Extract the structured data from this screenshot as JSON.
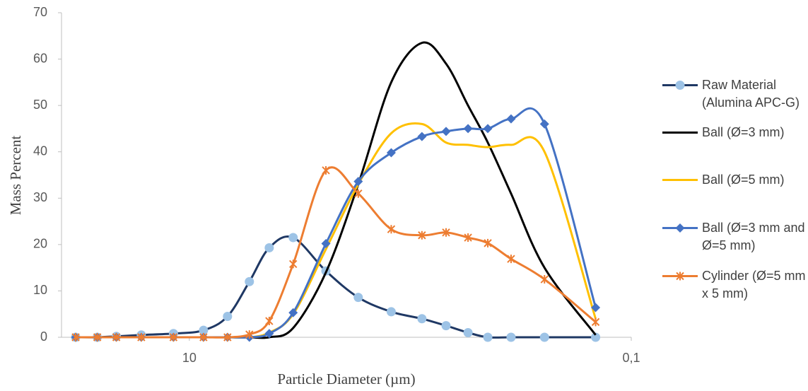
{
  "chart_data": {
    "type": "line",
    "xlabel": "Particle Diameter (µm)",
    "ylabel": "Mass Percent",
    "x": [
      32.7,
      26.1,
      21.4,
      16.5,
      11.8,
      8.63,
      6.72,
      5.35,
      4.35,
      3.39,
      2.41,
      1.72,
      1.22,
      0.886,
      0.689,
      0.548,
      0.446,
      0.35,
      0.247,
      0.145
    ],
    "xlog": true,
    "xlim": [
      37.9,
      0.1
    ],
    "xticks": [
      10,
      {
        "value": 0.1,
        "label": "0,1"
      }
    ],
    "ylim": [
      0,
      70
    ],
    "yticks": [
      0,
      10,
      20,
      30,
      40,
      50,
      60,
      70
    ],
    "grid": false,
    "legend": "right",
    "series": [
      {
        "name": "Raw Material (Alumina APC-G)",
        "color": "#1f3864",
        "marker": "circle",
        "marker_color": "#9dc3e6",
        "values": [
          0,
          0,
          0.2,
          0.5,
          0.8,
          1.5,
          4.5,
          12,
          19.3,
          21.5,
          14.3,
          8.6,
          5.5,
          4,
          2.5,
          1,
          0,
          0,
          0,
          0
        ]
      },
      {
        "name": "Ball (Ø=3 mm)",
        "color": "#000000",
        "marker": "none",
        "values": [
          0,
          0,
          0,
          0,
          0,
          0,
          0,
          0,
          0,
          2,
          14,
          33,
          55,
          63.5,
          59,
          50,
          42,
          31,
          15,
          0.5
        ]
      },
      {
        "name": "Ball (Ø=5 mm)",
        "color": "#ffc000",
        "marker": "none",
        "values": [
          0,
          0,
          0,
          0,
          0,
          0,
          0,
          0,
          1,
          5,
          19,
          33,
          44,
          46,
          42,
          41.5,
          41,
          41.5,
          40,
          4
        ]
      },
      {
        "name": "Ball (Ø=3 mm and Ø=5 mm)",
        "color": "#4472c4",
        "marker": "diamond",
        "marker_color": "#4472c4",
        "values": [
          0,
          0,
          0,
          0,
          0,
          0,
          0,
          0,
          0.8,
          5.3,
          20.2,
          33.6,
          39.8,
          43.3,
          44.4,
          45,
          45,
          47.1,
          46,
          6.4
        ]
      },
      {
        "name": "Cylinder (Ø=5 mm x 5 mm)",
        "color": "#ed7d31",
        "marker": "star",
        "marker_color": "#ed7d31",
        "values": [
          0,
          0,
          0,
          0,
          0,
          0,
          0,
          0.6,
          3.5,
          15.8,
          36,
          31,
          23.3,
          22,
          22.6,
          21.5,
          20.3,
          16.9,
          12.5,
          3.3
        ]
      }
    ]
  }
}
